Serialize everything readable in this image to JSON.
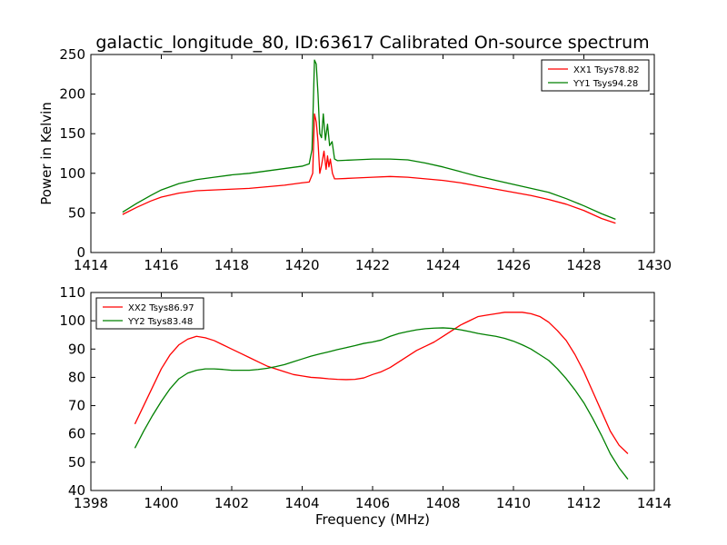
{
  "chart_data": [
    {
      "type": "line",
      "title": "galactic_longitude_80, ID:63617 Calibrated On-source spectrum",
      "xlabel": "",
      "ylabel": "Power in Kelvin",
      "xlim": [
        1414,
        1430
      ],
      "ylim": [
        0,
        250
      ],
      "xticks": [
        "1414",
        "1416",
        "1418",
        "1420",
        "1422",
        "1424",
        "1426",
        "1428",
        "1430"
      ],
      "yticks": [
        "0",
        "50",
        "100",
        "150",
        "200",
        "250"
      ],
      "legend_position": "top-right",
      "series": [
        {
          "name": "XX1 Tsys78.82",
          "color": "#ff0000",
          "x": [
            1414.9,
            1415.3,
            1415.7,
            1416.0,
            1416.5,
            1417.0,
            1417.5,
            1418.0,
            1418.5,
            1419.0,
            1419.5,
            1420.0,
            1420.2,
            1420.3,
            1420.35,
            1420.4,
            1420.45,
            1420.5,
            1420.55,
            1420.62,
            1420.68,
            1420.72,
            1420.76,
            1420.8,
            1420.86,
            1420.92,
            1421.0,
            1421.5,
            1422.0,
            1422.5,
            1423.0,
            1423.5,
            1424.0,
            1424.5,
            1425.0,
            1425.5,
            1426.0,
            1426.5,
            1427.0,
            1427.5,
            1428.0,
            1428.5,
            1428.9
          ],
          "values": [
            48,
            57,
            65,
            70,
            75,
            78,
            79,
            80,
            81,
            83,
            85,
            88,
            89,
            100,
            175,
            165,
            140,
            100,
            110,
            128,
            105,
            122,
            108,
            118,
            100,
            93,
            93,
            94,
            95,
            96,
            95,
            93,
            91,
            88,
            84,
            80,
            76,
            72,
            67,
            61,
            53,
            43,
            37
          ]
        },
        {
          "name": "YY1 Tsys94.28",
          "color": "#008000",
          "x": [
            1414.9,
            1415.3,
            1415.7,
            1416.0,
            1416.5,
            1417.0,
            1417.5,
            1418.0,
            1418.5,
            1419.0,
            1419.5,
            1420.0,
            1420.2,
            1420.28,
            1420.35,
            1420.4,
            1420.45,
            1420.5,
            1420.55,
            1420.6,
            1420.66,
            1420.72,
            1420.78,
            1420.85,
            1420.92,
            1421.0,
            1421.5,
            1422.0,
            1422.5,
            1423.0,
            1423.5,
            1424.0,
            1424.5,
            1425.0,
            1425.5,
            1426.0,
            1426.5,
            1427.0,
            1427.5,
            1428.0,
            1428.5,
            1428.9
          ],
          "values": [
            51,
            62,
            72,
            79,
            87,
            92,
            95,
            98,
            100,
            103,
            106,
            109,
            112,
            130,
            243,
            238,
            200,
            150,
            145,
            175,
            142,
            162,
            135,
            140,
            118,
            116,
            117,
            118,
            118,
            117,
            113,
            108,
            102,
            96,
            91,
            86,
            81,
            76,
            68,
            59,
            49,
            42
          ]
        }
      ]
    },
    {
      "type": "line",
      "title": "",
      "xlabel": "Frequency (MHz)",
      "ylabel": "",
      "xlim": [
        1398,
        1414
      ],
      "ylim": [
        40,
        110
      ],
      "xticks": [
        "1398",
        "1400",
        "1402",
        "1404",
        "1406",
        "1408",
        "1410",
        "1412",
        "1414"
      ],
      "yticks": [
        "40",
        "50",
        "60",
        "70",
        "80",
        "90",
        "100",
        "110"
      ],
      "legend_position": "top-left",
      "series": [
        {
          "name": "XX2 Tsys86.97",
          "color": "#ff0000",
          "x": [
            1399.25,
            1399.5,
            1399.75,
            1400.0,
            1400.25,
            1400.5,
            1400.75,
            1401.0,
            1401.25,
            1401.5,
            1401.75,
            1402.0,
            1402.25,
            1402.5,
            1402.75,
            1403.0,
            1403.25,
            1403.5,
            1403.75,
            1404.0,
            1404.25,
            1404.5,
            1404.75,
            1405.0,
            1405.25,
            1405.5,
            1405.75,
            1406.0,
            1406.25,
            1406.5,
            1406.75,
            1407.0,
            1407.25,
            1407.5,
            1407.75,
            1408.0,
            1408.25,
            1408.5,
            1408.75,
            1409.0,
            1409.25,
            1409.5,
            1409.75,
            1410.0,
            1410.25,
            1410.5,
            1410.75,
            1411.0,
            1411.25,
            1411.5,
            1411.75,
            1412.0,
            1412.25,
            1412.5,
            1412.75,
            1413.0,
            1413.25
          ],
          "values": [
            63.5,
            70,
            76.5,
            83,
            88,
            91.5,
            93.5,
            94.5,
            94,
            93,
            91.5,
            90,
            88.5,
            87,
            85.5,
            84,
            83,
            82,
            81,
            80.5,
            80,
            79.8,
            79.5,
            79.3,
            79.2,
            79.3,
            79.8,
            81,
            82,
            83.5,
            85.5,
            87.5,
            89.5,
            91,
            92.5,
            94.5,
            96.5,
            98.5,
            100,
            101.5,
            102,
            102.5,
            103,
            103,
            103,
            102.5,
            101.5,
            99.5,
            96.5,
            93,
            88,
            82,
            75,
            68,
            61,
            56,
            53
          ]
        },
        {
          "name": "YY2 Tsys83.48",
          "color": "#008000",
          "x": [
            1399.25,
            1399.5,
            1399.75,
            1400.0,
            1400.25,
            1400.5,
            1400.75,
            1401.0,
            1401.25,
            1401.5,
            1401.75,
            1402.0,
            1402.25,
            1402.5,
            1402.75,
            1403.0,
            1403.25,
            1403.5,
            1403.75,
            1404.0,
            1404.25,
            1404.5,
            1404.75,
            1405.0,
            1405.25,
            1405.5,
            1405.75,
            1406.0,
            1406.25,
            1406.5,
            1406.75,
            1407.0,
            1407.25,
            1407.5,
            1407.75,
            1408.0,
            1408.25,
            1408.5,
            1408.75,
            1409.0,
            1409.25,
            1409.5,
            1409.75,
            1410.0,
            1410.25,
            1410.5,
            1410.75,
            1411.0,
            1411.25,
            1411.5,
            1411.75,
            1412.0,
            1412.25,
            1412.5,
            1412.75,
            1413.0,
            1413.25
          ],
          "values": [
            55,
            61,
            66.5,
            71.5,
            76,
            79.5,
            81.5,
            82.5,
            83,
            83,
            82.8,
            82.5,
            82.5,
            82.5,
            82.8,
            83.2,
            83.8,
            84.5,
            85.5,
            86.5,
            87.5,
            88.3,
            89,
            89.8,
            90.5,
            91.2,
            92,
            92.5,
            93.2,
            94.5,
            95.5,
            96.2,
            96.8,
            97.2,
            97.4,
            97.5,
            97.3,
            96.8,
            96.2,
            95.5,
            95,
            94.5,
            93.8,
            92.8,
            91.5,
            90,
            88,
            86,
            83,
            79.5,
            75.5,
            71,
            65.5,
            59.5,
            53,
            48,
            44
          ]
        }
      ]
    }
  ]
}
